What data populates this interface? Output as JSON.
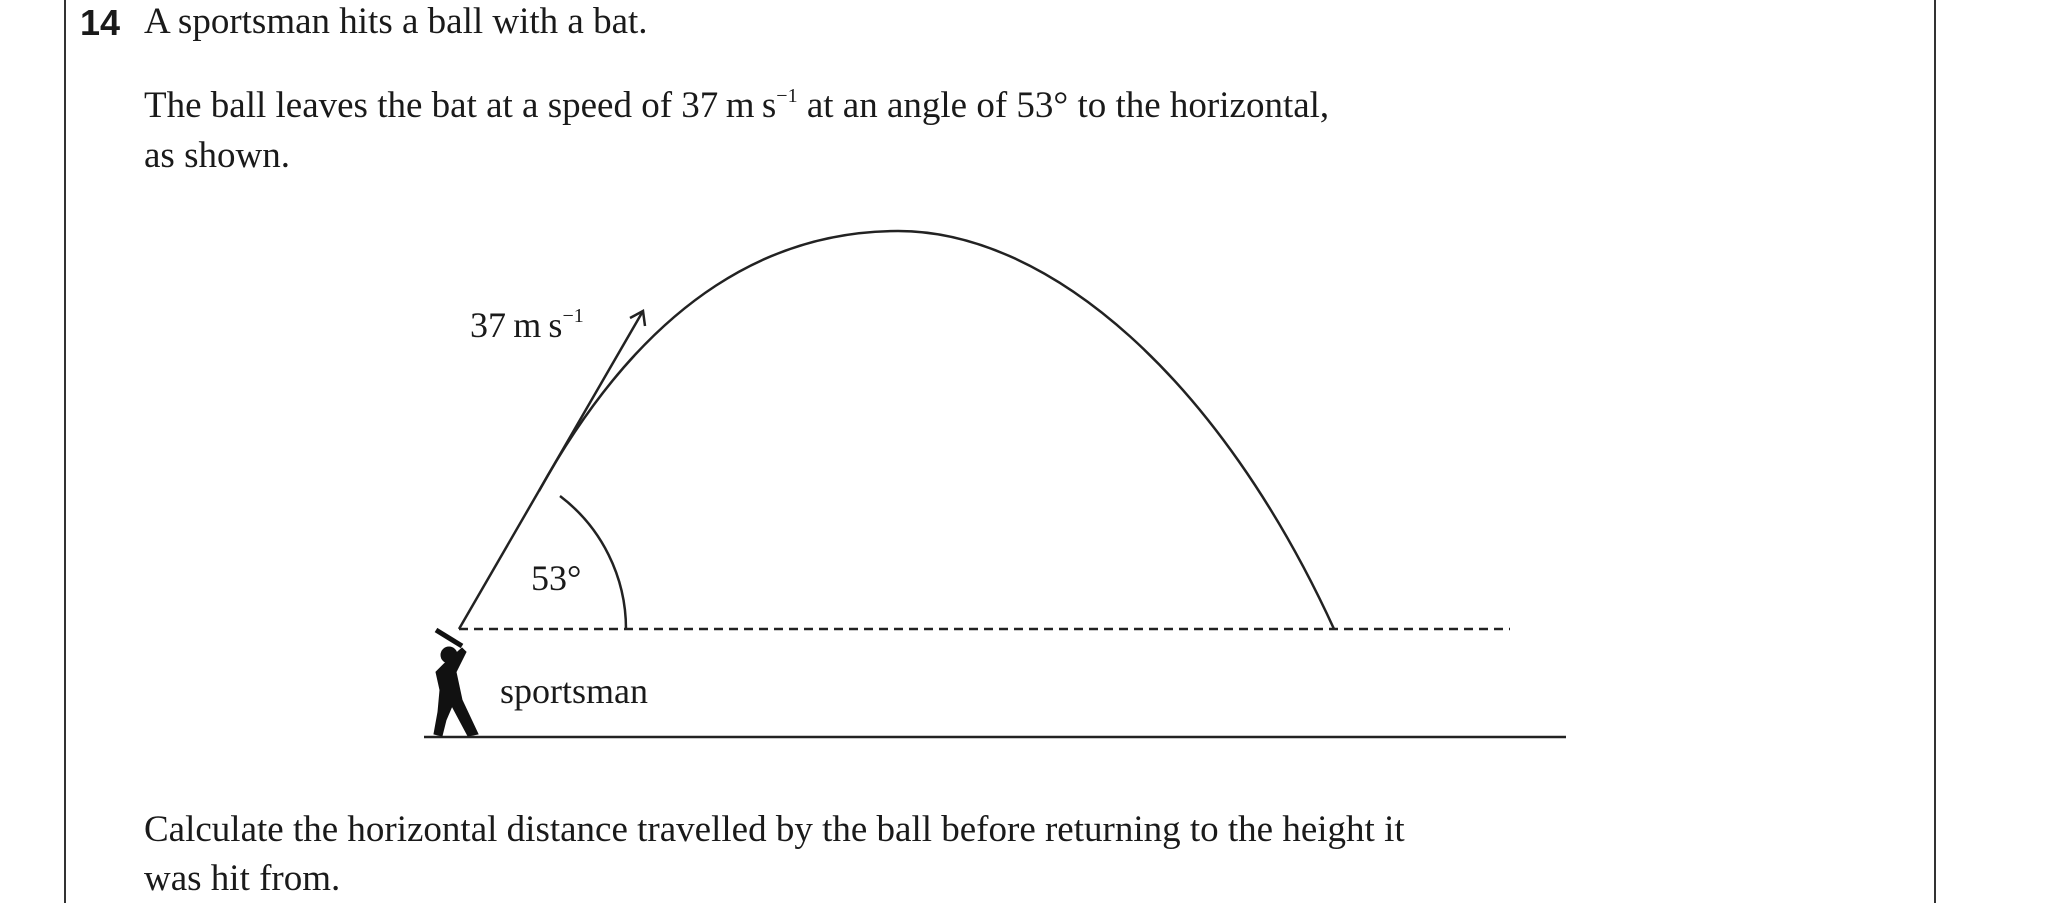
{
  "question": {
    "number": "14",
    "intro": "A sportsman hits a ball with a bat.",
    "para_line1_a": "The ball leaves the bat at a speed of 37 m s",
    "para_line1_sup": "−1",
    "para_line1_b": " at an angle of 53° to the horizontal,",
    "para_line2": "as shown.",
    "task_line1": "Calculate the horizontal distance travelled by the ball before returning to the height it",
    "task_line2": "was hit from."
  },
  "diagram": {
    "speed_label": "37 m s",
    "speed_sup": "−1",
    "angle_label": "53°",
    "person_label": "sportsman",
    "icon": "batter-silhouette-icon"
  }
}
